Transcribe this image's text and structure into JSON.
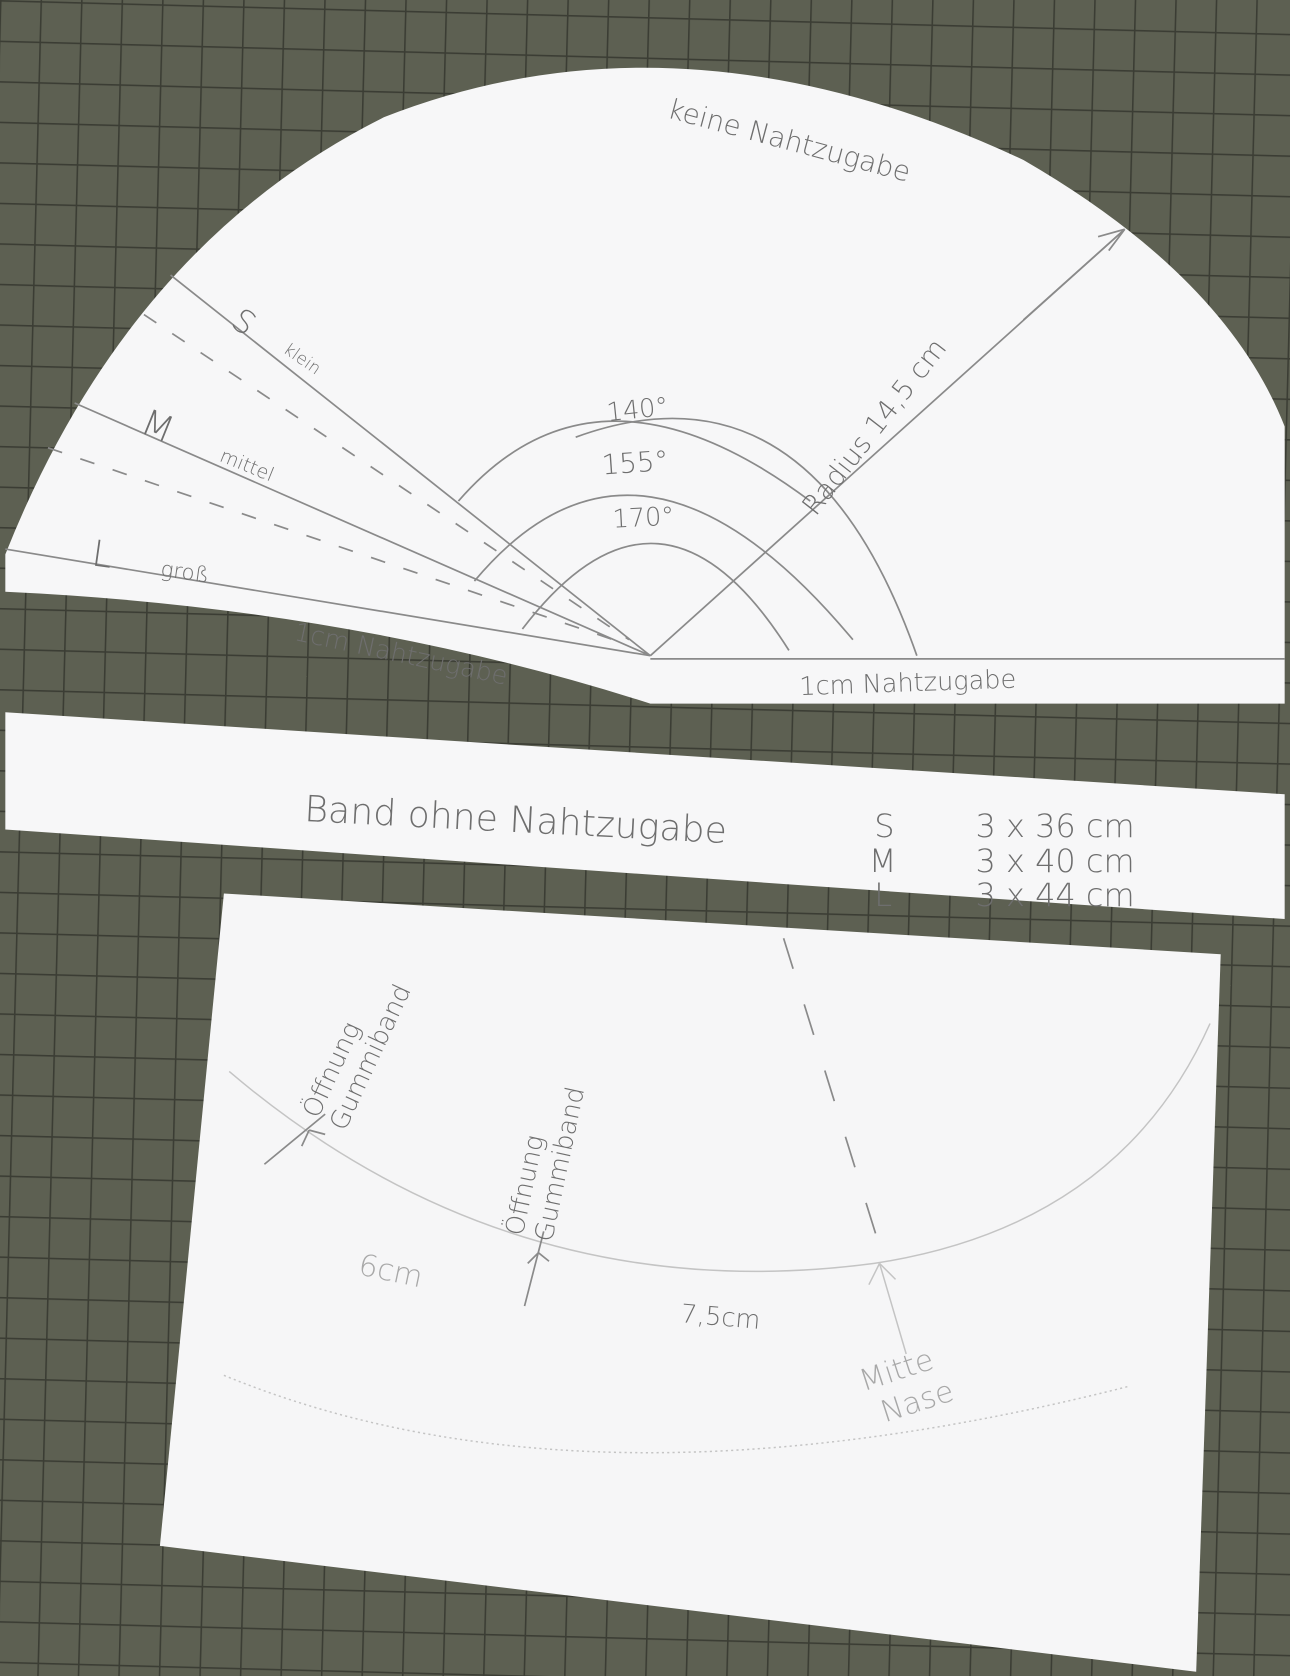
{
  "top_piece": {
    "note_top": "keine Nahtzugabe",
    "sizes": [
      {
        "size": "S",
        "label": "klein"
      },
      {
        "size": "M",
        "label": "mittel"
      },
      {
        "size": "L",
        "label": "groß"
      }
    ],
    "angles": [
      "140°",
      "155°",
      "170°"
    ],
    "radius": "Radius 14,5 cm",
    "seam_left": "1cm Nahtzugabe",
    "seam_right": "1cm Nahtzugabe"
  },
  "band": {
    "label": "Band ohne Nahtzugabe",
    "sizes": [
      {
        "size": "S",
        "dims": "3 x 36 cm"
      },
      {
        "size": "M",
        "dims": "3 x 40 cm"
      },
      {
        "size": "L",
        "dims": "3 x 44 cm"
      }
    ]
  },
  "bottom_piece": {
    "opening_1": [
      "Öffnung",
      "Gummiband"
    ],
    "opening_2": [
      "Öffnung",
      "Gummiband"
    ],
    "dist_1": "6cm",
    "dist_2": "7,5cm",
    "center": [
      "Mitte",
      "Nase"
    ]
  }
}
